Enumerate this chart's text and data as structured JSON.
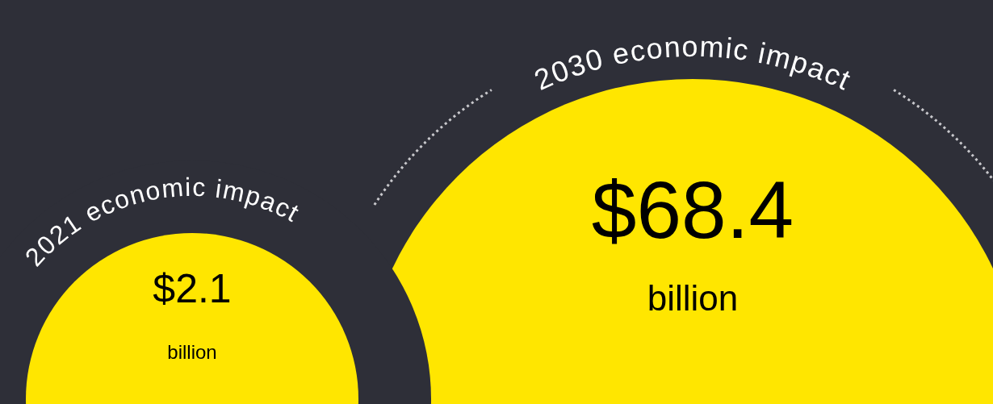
{
  "chart_data": {
    "type": "other",
    "categories": [
      "2021 economic impact",
      "2030 economic impact"
    ],
    "values": [
      2.1,
      68.4
    ],
    "value_labels": [
      "$2.1 billion",
      "$68.4 billion"
    ],
    "data_labels": true,
    "colors": [
      "#ffe600",
      "#ffe600"
    ]
  }
}
